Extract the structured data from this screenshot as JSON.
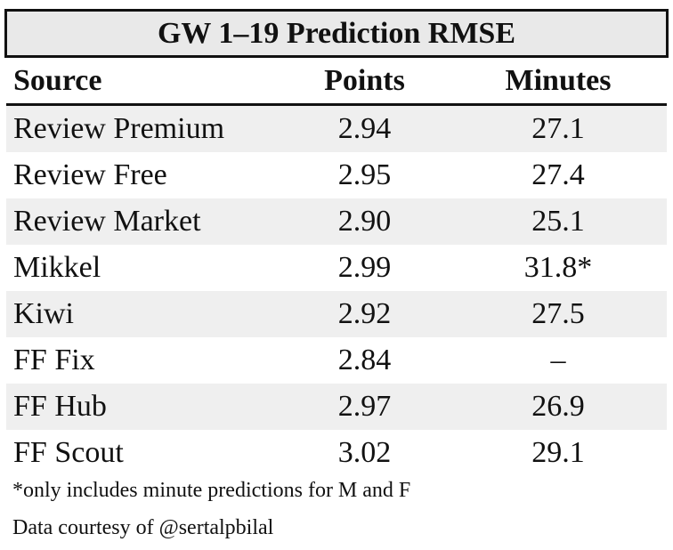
{
  "title": "GW 1–19 Prediction RMSE",
  "columns": {
    "source": "Source",
    "points": "Points",
    "minutes": "Minutes"
  },
  "rows": [
    {
      "source": "Review Premium",
      "points": "2.94",
      "minutes": "27.1"
    },
    {
      "source": "Review Free",
      "points": "2.95",
      "minutes": "27.4"
    },
    {
      "source": "Review Market",
      "points": "2.90",
      "minutes": "25.1"
    },
    {
      "source": "Mikkel",
      "points": "2.99",
      "minutes": "31.8*"
    },
    {
      "source": "Kiwi",
      "points": "2.92",
      "minutes": "27.5"
    },
    {
      "source": "FF Fix",
      "points": "2.84",
      "minutes": "–"
    },
    {
      "source": "FF Hub",
      "points": "2.97",
      "minutes": "26.9"
    },
    {
      "source": "FF Scout",
      "points": "3.02",
      "minutes": "29.1"
    }
  ],
  "footnote": "*only includes minute predictions for M and F",
  "credit": "Data courtesy of @sertalpbilal"
}
